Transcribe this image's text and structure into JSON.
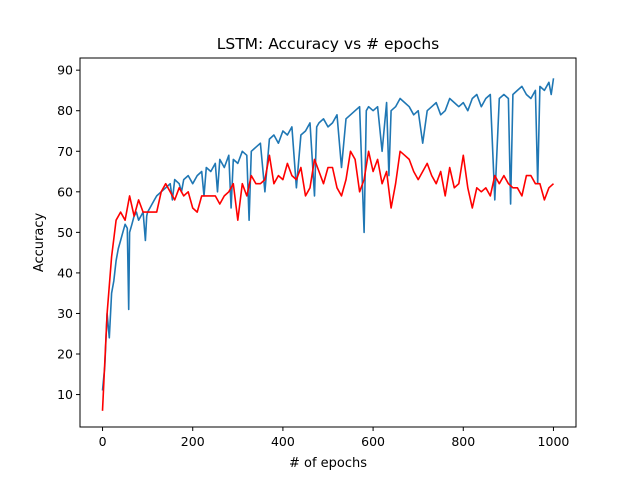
{
  "chart_data": {
    "type": "line",
    "title": "LSTM: Accuracy vs # epochs",
    "xlabel": "# of epochs",
    "ylabel": "Accuracy",
    "xlim": [
      -50,
      1050
    ],
    "ylim": [
      2,
      93
    ],
    "xticks": [
      0,
      200,
      400,
      600,
      800,
      1000
    ],
    "yticks": [
      10,
      20,
      30,
      40,
      50,
      60,
      70,
      80,
      90
    ],
    "grid": false,
    "legend": "none",
    "series": [
      {
        "color": "#1f77b4",
        "x": [
          0,
          5,
          10,
          15,
          20,
          25,
          30,
          35,
          40,
          45,
          50,
          55,
          58,
          60,
          65,
          70,
          75,
          80,
          85,
          90,
          95,
          98,
          100,
          105,
          110,
          115,
          120,
          130,
          140,
          150,
          155,
          160,
          170,
          175,
          180,
          190,
          200,
          210,
          220,
          225,
          230,
          240,
          250,
          255,
          260,
          270,
          280,
          285,
          290,
          300,
          310,
          320,
          325,
          330,
          340,
          350,
          360,
          370,
          380,
          390,
          400,
          410,
          420,
          430,
          440,
          450,
          460,
          470,
          475,
          480,
          490,
          500,
          510,
          520,
          530,
          540,
          550,
          560,
          570,
          580,
          585,
          590,
          600,
          610,
          620,
          630,
          635,
          640,
          650,
          660,
          670,
          680,
          690,
          700,
          710,
          720,
          730,
          740,
          750,
          760,
          770,
          780,
          790,
          800,
          810,
          820,
          830,
          840,
          850,
          860,
          870,
          880,
          890,
          900,
          905,
          910,
          920,
          930,
          940,
          950,
          960,
          965,
          970,
          980,
          990,
          995,
          1000
        ],
        "y": [
          11,
          17,
          30,
          24,
          35,
          38,
          43,
          46,
          48,
          50,
          52,
          51,
          31,
          50,
          52,
          54,
          55,
          53,
          54,
          55,
          48,
          54,
          55,
          56,
          57,
          58,
          59,
          60,
          61,
          62,
          58,
          63,
          62,
          60,
          63,
          64,
          62,
          64,
          65,
          59,
          66,
          65,
          67,
          60,
          68,
          66,
          69,
          56,
          68,
          67,
          70,
          69,
          53,
          70,
          71,
          72,
          60,
          73,
          74,
          72,
          75,
          74,
          76,
          61,
          74,
          75,
          77,
          59,
          76,
          77,
          78,
          76,
          77,
          79,
          66,
          78,
          79,
          80,
          81,
          50,
          80,
          81,
          80,
          81,
          70,
          82,
          64,
          80,
          81,
          83,
          82,
          81,
          79,
          80,
          72,
          80,
          81,
          82,
          79,
          80,
          83,
          82,
          81,
          82,
          80,
          83,
          84,
          81,
          83,
          84,
          58,
          83,
          84,
          83,
          57,
          84,
          85,
          86,
          84,
          83,
          85,
          62,
          86,
          85,
          87,
          84,
          88
        ]
      },
      {
        "color": "#ff0000",
        "x": [
          0,
          10,
          20,
          30,
          40,
          50,
          60,
          70,
          80,
          90,
          100,
          110,
          120,
          130,
          140,
          150,
          160,
          170,
          180,
          190,
          200,
          210,
          220,
          230,
          240,
          250,
          260,
          270,
          280,
          290,
          300,
          310,
          320,
          330,
          340,
          350,
          360,
          370,
          380,
          390,
          400,
          410,
          420,
          430,
          440,
          450,
          460,
          470,
          480,
          490,
          500,
          510,
          520,
          530,
          540,
          550,
          560,
          570,
          580,
          590,
          600,
          610,
          620,
          630,
          640,
          650,
          660,
          670,
          680,
          690,
          700,
          710,
          720,
          730,
          740,
          750,
          760,
          770,
          780,
          790,
          800,
          810,
          820,
          830,
          840,
          850,
          860,
          870,
          880,
          890,
          900,
          910,
          920,
          930,
          940,
          950,
          960,
          970,
          980,
          990,
          1000
        ],
        "y": [
          6,
          30,
          44,
          53,
          55,
          53,
          59,
          54,
          58,
          55,
          55,
          55,
          55,
          60,
          62,
          60,
          58,
          61,
          59,
          60,
          56,
          55,
          59,
          59,
          59,
          59,
          57,
          59,
          60,
          62,
          53,
          62,
          59,
          64,
          62,
          62,
          63,
          69,
          62,
          64,
          63,
          67,
          64,
          63,
          66,
          59,
          61,
          68,
          65,
          62,
          66,
          66,
          61,
          59,
          63,
          70,
          68,
          60,
          63,
          70,
          65,
          68,
          62,
          65,
          56,
          62,
          70,
          69,
          68,
          65,
          63,
          65,
          67,
          64,
          62,
          65,
          59,
          66,
          61,
          62,
          69,
          61,
          56,
          61,
          60,
          61,
          59,
          64,
          62,
          64,
          62,
          61,
          61,
          59,
          64,
          64,
          62,
          62,
          58,
          61,
          62
        ]
      }
    ]
  }
}
